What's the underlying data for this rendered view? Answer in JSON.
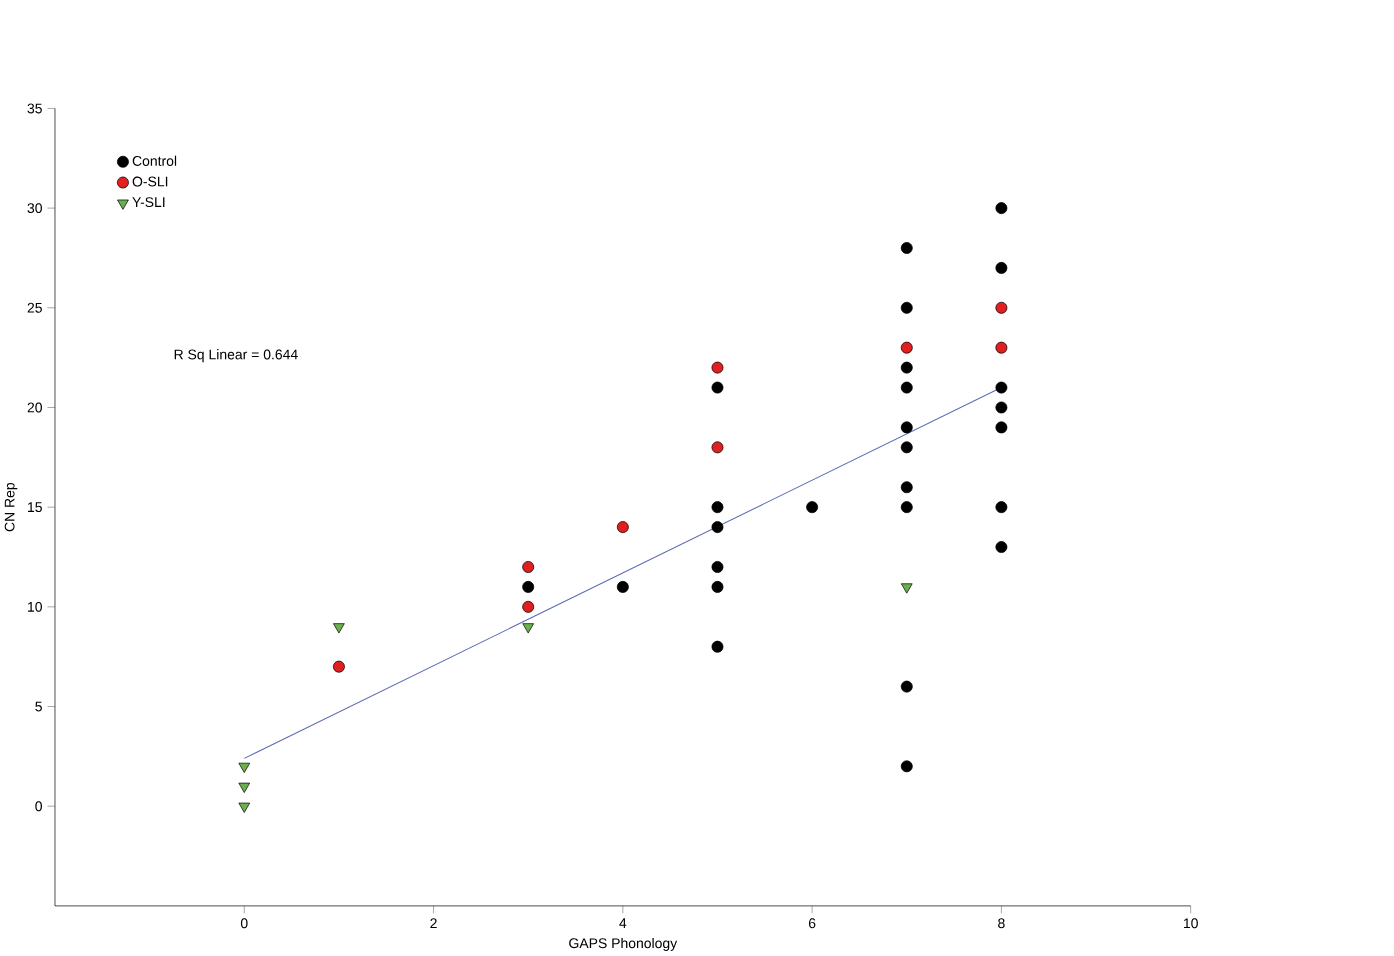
{
  "chart_data": {
    "type": "scatter",
    "xlabel": "GAPS Phonology",
    "ylabel": "CN Rep",
    "xlim": [
      -2,
      10
    ],
    "ylim": [
      -5,
      35
    ],
    "xticks": [
      0,
      2,
      4,
      6,
      8,
      10
    ],
    "yticks": [
      0,
      5,
      10,
      15,
      20,
      25,
      30,
      35
    ],
    "legend": "top left",
    "grid": false,
    "annotations": [
      "R Sq Linear = 0.644"
    ],
    "series": [
      {
        "name": "Control",
        "color": "#000000",
        "marker": "circle",
        "x": [
          3,
          4,
          5,
          5,
          5,
          5,
          5,
          5,
          6,
          7,
          7,
          7,
          7,
          7,
          7,
          7,
          7,
          7,
          7,
          8,
          8,
          8,
          8,
          8,
          8,
          8
        ],
        "values": [
          11,
          11,
          21,
          15,
          14,
          12,
          11,
          8,
          15,
          28,
          25,
          22,
          21,
          19,
          18,
          16,
          15,
          6,
          2,
          30,
          27,
          21,
          20,
          19,
          15,
          13
        ]
      },
      {
        "name": "O-SLI",
        "color": "#e02020",
        "marker": "circle",
        "x": [
          1,
          3,
          3,
          4,
          5,
          5,
          7,
          8,
          8
        ],
        "values": [
          7,
          12,
          10,
          14,
          22,
          18,
          23,
          25,
          23
        ]
      },
      {
        "name": "Y-SLI",
        "color": "#6ab04c",
        "marker": "triangle",
        "x": [
          0,
          0,
          0,
          1,
          3,
          7
        ],
        "values": [
          2,
          1,
          0,
          9,
          9,
          11
        ]
      },
      {
        "type": "line",
        "color": "#5b6bb5",
        "marker": "none",
        "x": [
          0,
          8
        ],
        "values": [
          2.4,
          21.0
        ]
      }
    ]
  }
}
